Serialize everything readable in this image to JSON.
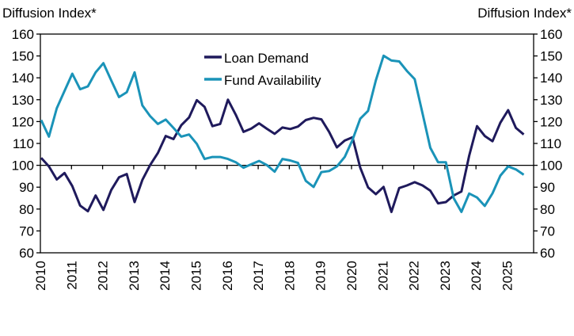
{
  "chart_data": {
    "type": "line",
    "left_axis_title": "Diffusion Index*",
    "right_axis_title": "Diffusion Index*",
    "ylim": [
      60,
      160
    ],
    "yticks": [
      60,
      70,
      80,
      90,
      100,
      110,
      120,
      130,
      140,
      150,
      160
    ],
    "x_start": "2010Q1",
    "x_end": "2025Q3",
    "frequency": "quarterly",
    "xtick_labels": [
      "2010",
      "2011",
      "2012",
      "2013",
      "2014",
      "2015",
      "2016",
      "2017",
      "2018",
      "2019",
      "2020",
      "2021",
      "2022",
      "2023",
      "2024",
      "2025"
    ],
    "reference_line": 100,
    "grid": false,
    "legend_position": "top-center",
    "series": [
      {
        "name": "Loan Demand",
        "color": "#1f1a5c",
        "values": [
          103.4,
          99.5,
          93.5,
          96.5,
          90.5,
          81.6,
          79,
          86.2,
          79.6,
          88.7,
          94.5,
          96,
          83.2,
          93.3,
          100.1,
          105.6,
          113.4,
          112,
          118.3,
          121.9,
          129.8,
          126.7,
          117.9,
          118.9,
          130,
          123.1,
          115.3,
          116.8,
          119.2,
          116.7,
          114.4,
          117.3,
          116.6,
          117.7,
          120.7,
          121.7,
          121,
          115.3,
          108.2,
          111.3,
          112.8,
          98.9,
          89.9,
          86.8,
          90.1,
          78.7,
          89.6,
          90.8,
          92.3,
          90.8,
          88.4,
          82.6,
          83.2,
          86.2,
          88,
          104.4,
          117.9,
          113.4,
          111,
          119.5,
          125.2,
          117.1,
          114.1
        ]
      },
      {
        "name": "Fund Availability",
        "color": "#1a93b8",
        "values": [
          120.7,
          113.1,
          126.1,
          134,
          141.9,
          134.8,
          136.1,
          142.5,
          146.7,
          138.8,
          131.2,
          133.4,
          142.5,
          127.4,
          122.5,
          118.9,
          120.9,
          117.1,
          113.1,
          114.1,
          109.8,
          102.9,
          103.8,
          103.8,
          102.9,
          101.4,
          98.9,
          100.5,
          102,
          100.1,
          97.1,
          102.9,
          102.2,
          101.1,
          92.9,
          90.1,
          96.9,
          97.4,
          99.5,
          103.8,
          111.6,
          121.3,
          124.9,
          138.8,
          150.1,
          147.9,
          147.5,
          143.1,
          139.4,
          123.7,
          108,
          101.4,
          101.4,
          85,
          78.7,
          87.1,
          85.3,
          81.4,
          87.2,
          95.3,
          99.5,
          98.1,
          95.7
        ]
      }
    ]
  }
}
